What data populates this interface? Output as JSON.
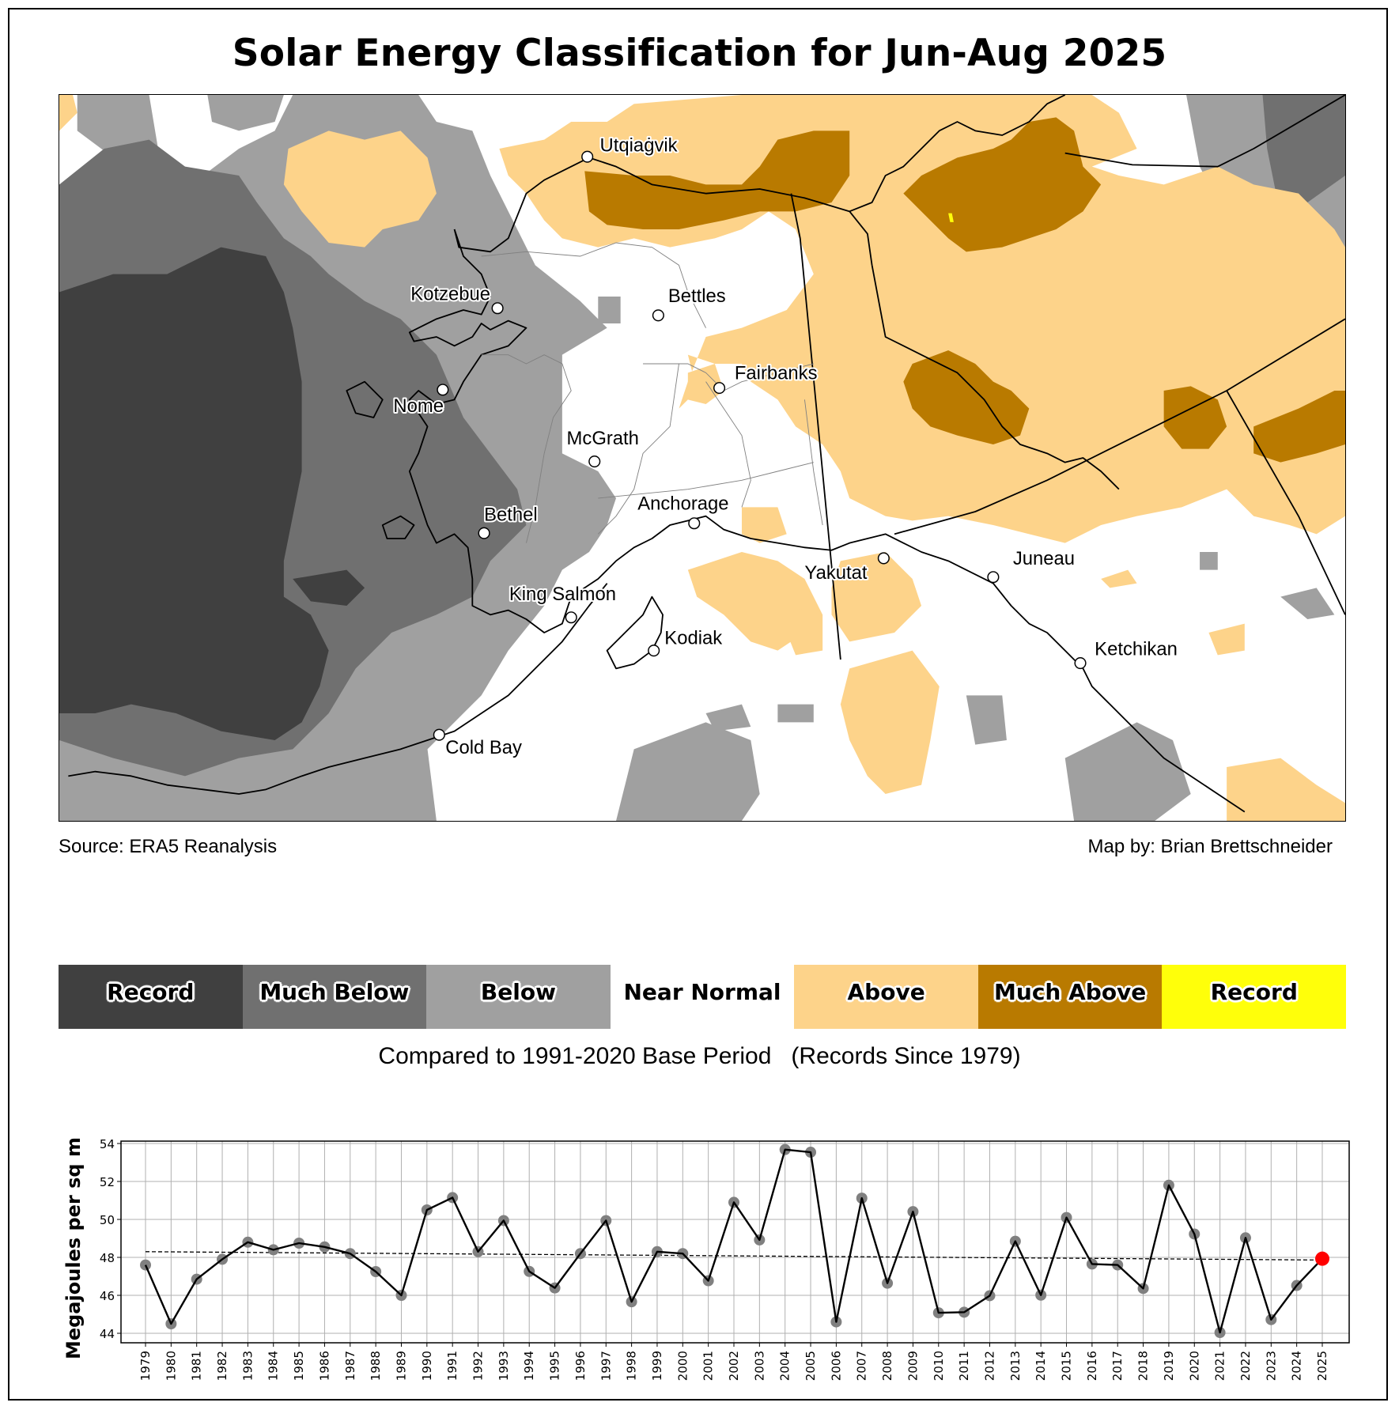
{
  "title": "Solar Energy Classification for Jun-Aug 2025",
  "map": {
    "colors": {
      "record_below": "#404040",
      "much_below": "#707070",
      "below": "#a0a0a0",
      "near_normal": "#ffffff",
      "above": "#fdd38a",
      "much_above": "#b97a00",
      "record_above": "#ffff0a"
    },
    "cities": [
      {
        "name": "Utqiaġvik"
      },
      {
        "name": "Kotzebue"
      },
      {
        "name": "Bettles"
      },
      {
        "name": "Fairbanks"
      },
      {
        "name": "Nome"
      },
      {
        "name": "McGrath"
      },
      {
        "name": "Bethel"
      },
      {
        "name": "Anchorage"
      },
      {
        "name": "King Salmon"
      },
      {
        "name": "Kodiak"
      },
      {
        "name": "Yakutat"
      },
      {
        "name": "Juneau"
      },
      {
        "name": "Ketchikan"
      },
      {
        "name": "Cold Bay"
      }
    ]
  },
  "footer": {
    "source": "Source: ERA5 Reanalysis",
    "credit": "Map by: Brian Brettschneider"
  },
  "legend": {
    "items": [
      {
        "label": "Record",
        "color": "#404040"
      },
      {
        "label": "Much Below",
        "color": "#707070"
      },
      {
        "label": "Below",
        "color": "#a0a0a0"
      },
      {
        "label": "Near Normal",
        "color": "#ffffff"
      },
      {
        "label": "Above",
        "color": "#fdd38a"
      },
      {
        "label": "Much Above",
        "color": "#b97a00"
      },
      {
        "label": "Record",
        "color": "#ffff0a"
      }
    ],
    "base_period": "Compared to 1991-2020 Base Period   (Records Since 1979)"
  },
  "chart_data": {
    "type": "line",
    "title": "",
    "xlabel": "",
    "ylabel": "Megajoules per sq m",
    "ylim": [
      43.5,
      54.2
    ],
    "yticks": [
      44,
      46,
      48,
      50,
      52,
      54
    ],
    "grid": true,
    "x": [
      1979,
      1980,
      1981,
      1982,
      1983,
      1984,
      1985,
      1986,
      1987,
      1988,
      1989,
      1990,
      1991,
      1992,
      1993,
      1994,
      1995,
      1996,
      1997,
      1998,
      1999,
      2000,
      2001,
      2002,
      2003,
      2004,
      2005,
      2006,
      2007,
      2008,
      2009,
      2010,
      2011,
      2012,
      2013,
      2014,
      2015,
      2016,
      2017,
      2018,
      2019,
      2020,
      2021,
      2022,
      2023,
      2024,
      2025
    ],
    "series": [
      {
        "name": "Jun-Aug solar energy",
        "color": "#000000",
        "marker_color": "#808080",
        "values": [
          47.6,
          44.5,
          46.85,
          47.9,
          48.8,
          48.4,
          48.75,
          48.55,
          48.2,
          47.25,
          46.0,
          50.5,
          51.15,
          48.3,
          49.94,
          47.26,
          46.39,
          48.2,
          49.94,
          45.66,
          48.3,
          48.2,
          46.77,
          50.9,
          48.92,
          53.68,
          53.54,
          44.6,
          51.12,
          46.64,
          50.41,
          45.08,
          45.11,
          45.98,
          48.85,
          46.01,
          50.1,
          47.65,
          47.6,
          46.36,
          51.8,
          49.23,
          44.04,
          49.03,
          44.72,
          46.52,
          47.93
        ]
      },
      {
        "name": "Linear trend",
        "style": "dashed",
        "color": "#000000",
        "start": [
          1979,
          48.3
        ],
        "end": [
          2025,
          47.86
        ]
      }
    ],
    "highlight": {
      "year": 2025,
      "value": 47.93,
      "color": "#ff0000"
    }
  }
}
